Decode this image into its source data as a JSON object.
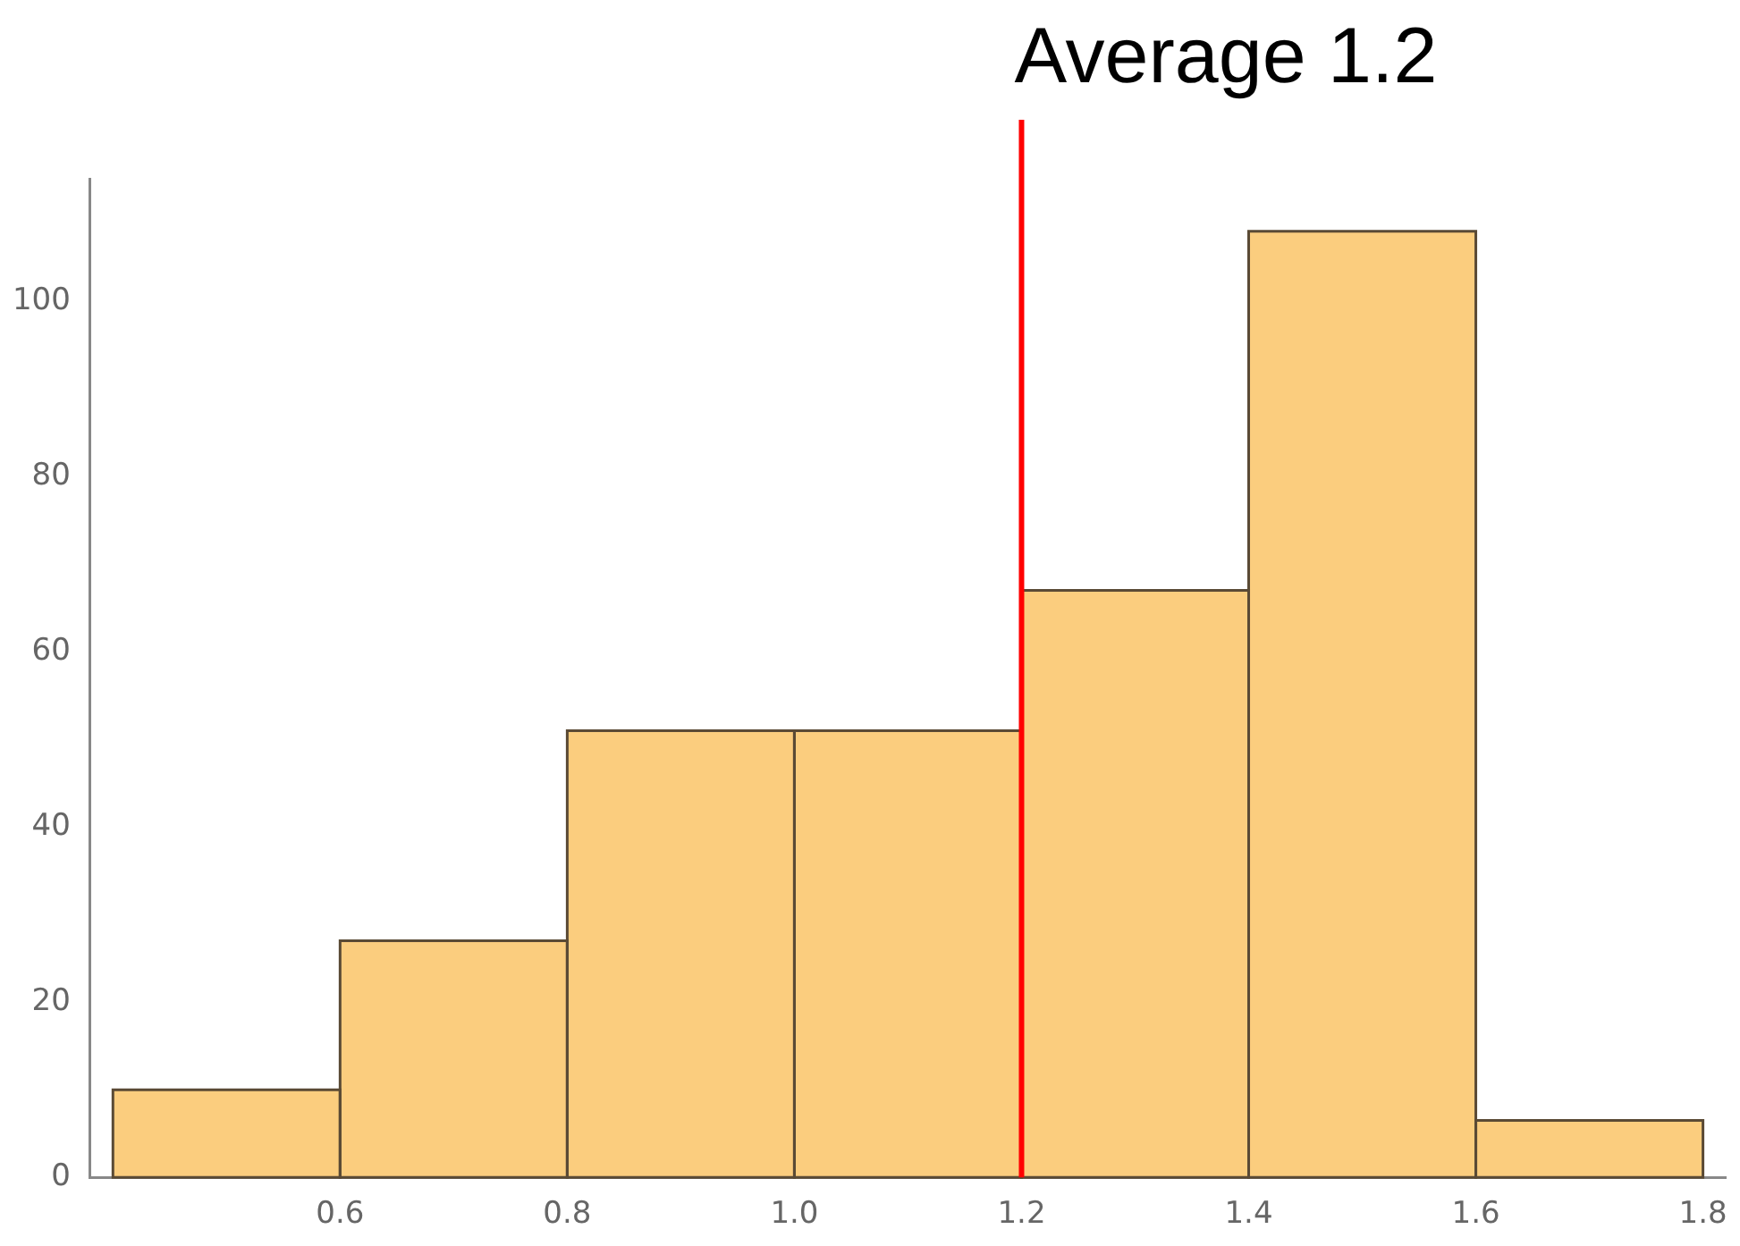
{
  "chart_data": {
    "type": "histogram",
    "bins": [
      0.4,
      0.6,
      0.8,
      1.0,
      1.2,
      1.4,
      1.6,
      1.8
    ],
    "values": [
      10,
      27,
      51,
      51,
      67,
      108,
      6.5
    ],
    "color": "#fbcd7e",
    "xlim": [
      0.38,
      1.82
    ],
    "xticks": [
      0.6,
      0.8,
      {
        "value": 1,
        "label": "1.0"
      },
      1.2,
      1.4,
      1.6,
      1.8
    ],
    "ylim": [
      0,
      114
    ],
    "yticks": [
      0,
      20,
      40,
      60,
      80,
      100
    ],
    "grid": false,
    "legend": false,
    "ref_lines": [
      {
        "axis": "x",
        "value": 1.2,
        "label": "Average 1.2",
        "color": "#ff0000"
      }
    ]
  }
}
